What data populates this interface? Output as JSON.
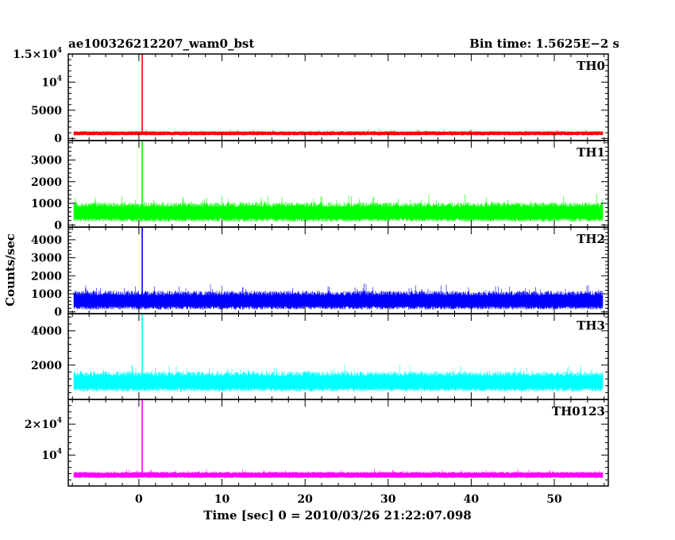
{
  "chart_data": {
    "type": "line",
    "title_left": "ae100326212207_wam0_bst",
    "title_right": "Bin time: 1.5625E−2 s",
    "xlabel": "Time [sec] 0 = 2010/03/26 21:22:07.098",
    "ylabel": "Counts/sec",
    "xlim": [
      -8.5,
      56.5
    ],
    "data_range": [
      -7.8,
      55.8
    ],
    "x_ticks": [
      0,
      10,
      20,
      30,
      40,
      50
    ],
    "x_tick_labels": [
      "0",
      "10",
      "20",
      "30",
      "40",
      "50"
    ],
    "burst_time": 0.4,
    "panels": [
      {
        "name": "TH0",
        "color": "#ff0000",
        "ylim": [
          -400,
          15000
        ],
        "ticks": [
          0,
          5000,
          10000,
          15000
        ],
        "tick_labels": [
          {
            "text": "0"
          },
          {
            "text": "5000"
          },
          {
            "mant": "",
            "exp": "4",
            "base": "10"
          },
          {
            "mant": "1.5×",
            "exp": "4",
            "base": "10"
          }
        ],
        "baseline": 900,
        "noise": 550,
        "peak": 15000
      },
      {
        "name": "TH1",
        "color": "#00ff00",
        "ylim": [
          -100,
          3900
        ],
        "ticks": [
          0,
          1000,
          2000,
          3000
        ],
        "tick_labels": [
          {
            "text": "0"
          },
          {
            "text": "1000"
          },
          {
            "text": "2000"
          },
          {
            "text": "3000"
          }
        ],
        "baseline": 600,
        "noise": 650,
        "peak": 3900
      },
      {
        "name": "TH2",
        "color": "#0000ff",
        "ylim": [
          -100,
          4700
        ],
        "ticks": [
          0,
          1000,
          2000,
          3000,
          4000
        ],
        "tick_labels": [
          {
            "text": "0"
          },
          {
            "text": "1000"
          },
          {
            "text": "2000"
          },
          {
            "text": "3000"
          },
          {
            "text": "4000"
          }
        ],
        "baseline": 650,
        "noise": 750,
        "peak": 4700
      },
      {
        "name": "TH3",
        "color": "#00ffff",
        "ylim": [
          0,
          5000
        ],
        "ticks": [
          2000,
          4000
        ],
        "tick_labels": [
          {
            "text": "2000"
          },
          {
            "text": "4000"
          }
        ],
        "baseline": 1050,
        "noise": 850,
        "peak": 5000
      },
      {
        "name": "TH0123",
        "color": "#ff00ff",
        "ylim": [
          0,
          28000
        ],
        "ticks": [
          10000,
          20000
        ],
        "tick_labels": [
          {
            "mant": "",
            "exp": "4",
            "base": "10"
          },
          {
            "mant": "2×",
            "exp": "4",
            "base": "10"
          }
        ],
        "baseline": 3600,
        "noise": 1500,
        "peak": 28000
      }
    ]
  }
}
